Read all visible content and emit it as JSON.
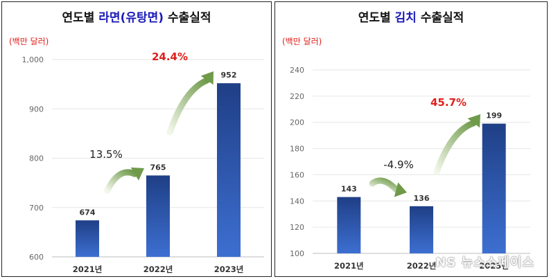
{
  "chart_data": [
    {
      "type": "bar",
      "title_parts": [
        {
          "text": "연도별 ",
          "color": "#111111"
        },
        {
          "text": "라면(유탕면)",
          "color": "#1a1ab8"
        },
        {
          "text": " 수출실적",
          "color": "#111111"
        }
      ],
      "unit": "(백만 달러)",
      "categories": [
        "2021년",
        "2022년",
        "2023년"
      ],
      "values": [
        674,
        765,
        952
      ],
      "ylim": [
        600,
        1000
      ],
      "yticks": [
        600,
        700,
        800,
        900,
        1000
      ],
      "ytick_labels": [
        "600",
        "700",
        "800",
        "900",
        "1,000"
      ],
      "growth": [
        {
          "text": "13.5%",
          "color": "#222222",
          "bold": false
        },
        {
          "text": "24.4%",
          "color": "#e0201c",
          "bold": true
        }
      ]
    },
    {
      "type": "bar",
      "title_parts": [
        {
          "text": "연도별 ",
          "color": "#111111"
        },
        {
          "text": "김치",
          "color": "#1a1ab8"
        },
        {
          "text": " 수출실적",
          "color": "#111111"
        }
      ],
      "unit": "(백만 달러)",
      "categories": [
        "2021년",
        "2022년",
        "2023년"
      ],
      "values": [
        143,
        136,
        199
      ],
      "ylim": [
        100,
        240
      ],
      "yticks": [
        100,
        120,
        140,
        160,
        180,
        200,
        220,
        240
      ],
      "ytick_labels": [
        "100",
        "120",
        "140",
        "160",
        "180",
        "200",
        "220",
        "240"
      ],
      "growth": [
        {
          "text": "-4.9%",
          "color": "#222222",
          "bold": false
        },
        {
          "text": "45.7%",
          "color": "#e0201c",
          "bold": true
        }
      ]
    }
  ],
  "colors": {
    "bar_top": "#1f3f86",
    "bar_bottom": "#3d6fd1",
    "arrow_light": "#f2f7ea",
    "arrow_dark": "#6f9a4a"
  },
  "watermark": "NS 뉴스스페이스"
}
